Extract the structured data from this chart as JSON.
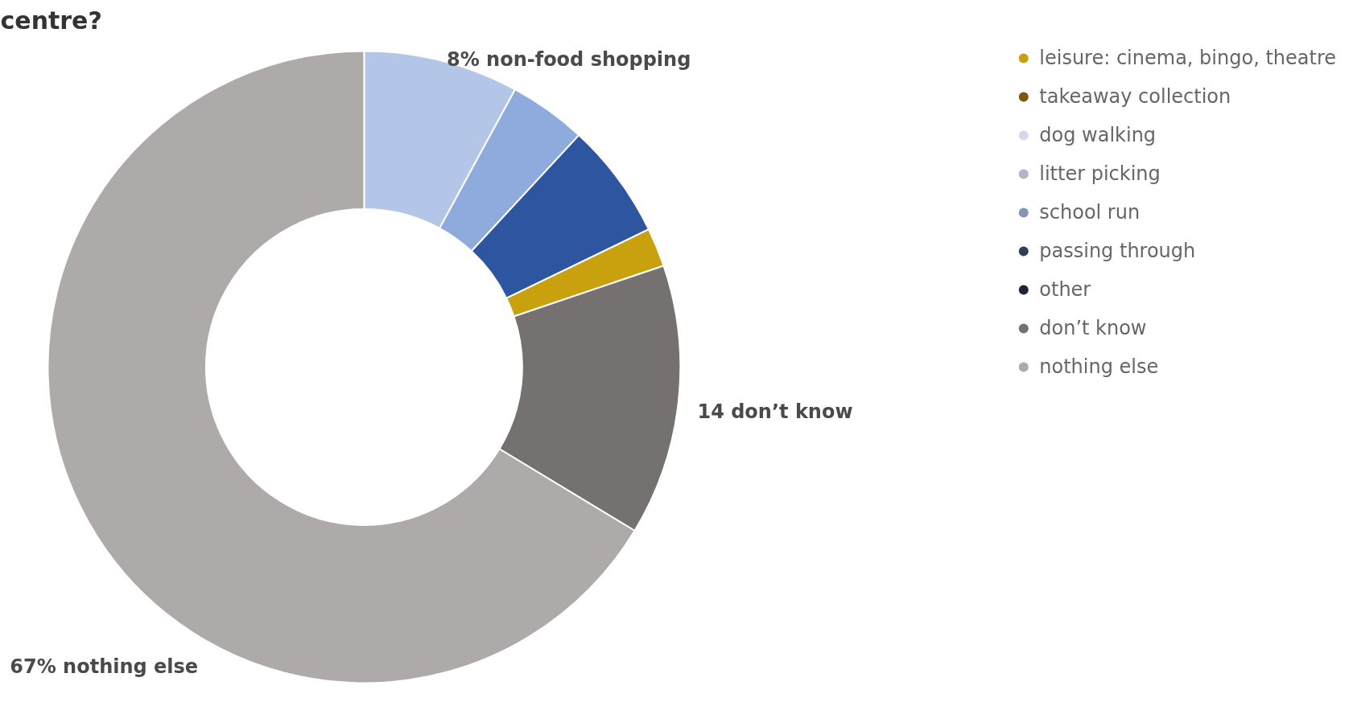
{
  "chart_data": {
    "type": "donut",
    "title": "centre?",
    "categories": [
      null,
      null,
      null,
      "leisure: cinema, bingo, theatre",
      "takeaway collection",
      "dog walking",
      "litter picking",
      "school run",
      "passing through",
      "other",
      "don’t know",
      "nothing else"
    ],
    "values": [
      8,
      4,
      6,
      2,
      0,
      0,
      0,
      0,
      0,
      0,
      14,
      67
    ],
    "colors": [
      "#b4c6e7",
      "#8faadc",
      "#2e56a0",
      "#c9a00e",
      "#7a5a10",
      "#d5dbe6",
      "#b0b6c4",
      "#8497b0",
      "#323e55",
      "#1f2633",
      "#767171",
      "#aeaaaa"
    ],
    "value_labels": [
      "8% non-food shopping",
      null,
      null,
      null,
      null,
      null,
      null,
      null,
      null,
      null,
      "14 don’t know",
      "67% nothing else"
    ],
    "legend": "top right"
  }
}
